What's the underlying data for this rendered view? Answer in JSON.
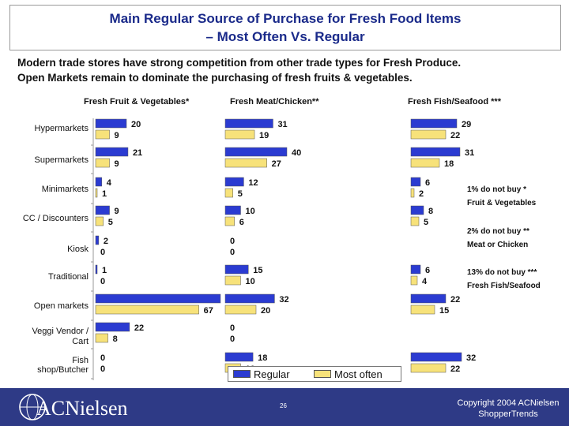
{
  "header": {
    "title_line1": "Main Regular Source of Purchase for Fresh Food Items",
    "title_line2": "– Most Often Vs. Regular",
    "subtitle_line1": "Modern trade stores have strong competition from other trade types for Fresh Produce.",
    "subtitle_line2": "Open Markets remain to dominate the purchasing of fresh fruits & vegetables."
  },
  "notes": {
    "fruit_line1": "1% do not buy  *",
    "fruit_line2": "Fruit & Vegetables",
    "meat_line1": "2% do not buy  **",
    "meat_line2": "Meat or Chicken",
    "fish_line1": "13% do not buy  ***",
    "fish_line2": "Fresh Fish/Seafood"
  },
  "footer": {
    "logo_text": "ACNielsen",
    "page_number": "26",
    "copyright_line1": "Copyright 2004 ACNielsen",
    "copyright_line2": "ShopperTrends"
  },
  "colors": {
    "regular": "#2b3bd1",
    "most_often": "#f7e27a",
    "footer": "#2e3a86",
    "title": "#1a2a8a"
  },
  "chart_data": {
    "type": "bar",
    "orientation": "horizontal",
    "categories": [
      "Hypermarkets",
      "Supermarkets",
      "Minimarkets",
      "CC / Discounters",
      "Kiosk",
      "Traditional",
      "Open markets",
      "Veggi Vendor / Cart",
      "Fish shop/Butcher"
    ],
    "legend": [
      "Regular",
      "Most often"
    ],
    "legend_position": "bottom",
    "panels": [
      {
        "title": "Fresh Fruit & Vegetables*",
        "series": [
          {
            "name": "Regular",
            "values": [
              20,
              21,
              4,
              9,
              2,
              1,
              81,
              22,
              0
            ]
          },
          {
            "name": "Most often",
            "values": [
              9,
              9,
              1,
              5,
              0,
              0,
              67,
              8,
              0
            ]
          }
        ]
      },
      {
        "title": "Fresh Meat/Chicken**",
        "series": [
          {
            "name": "Regular",
            "values": [
              31,
              40,
              12,
              10,
              0,
              15,
              32,
              0,
              18
            ]
          },
          {
            "name": "Most often",
            "values": [
              19,
              27,
              5,
              6,
              0,
              10,
              20,
              0,
              10
            ]
          }
        ]
      },
      {
        "title": "Fresh Fish/Seafood ***",
        "series": [
          {
            "name": "Regular",
            "values": [
              29,
              31,
              6,
              8,
              null,
              6,
              22,
              null,
              32
            ]
          },
          {
            "name": "Most often",
            "values": [
              22,
              18,
              2,
              5,
              null,
              4,
              15,
              null,
              22
            ]
          }
        ]
      }
    ]
  }
}
